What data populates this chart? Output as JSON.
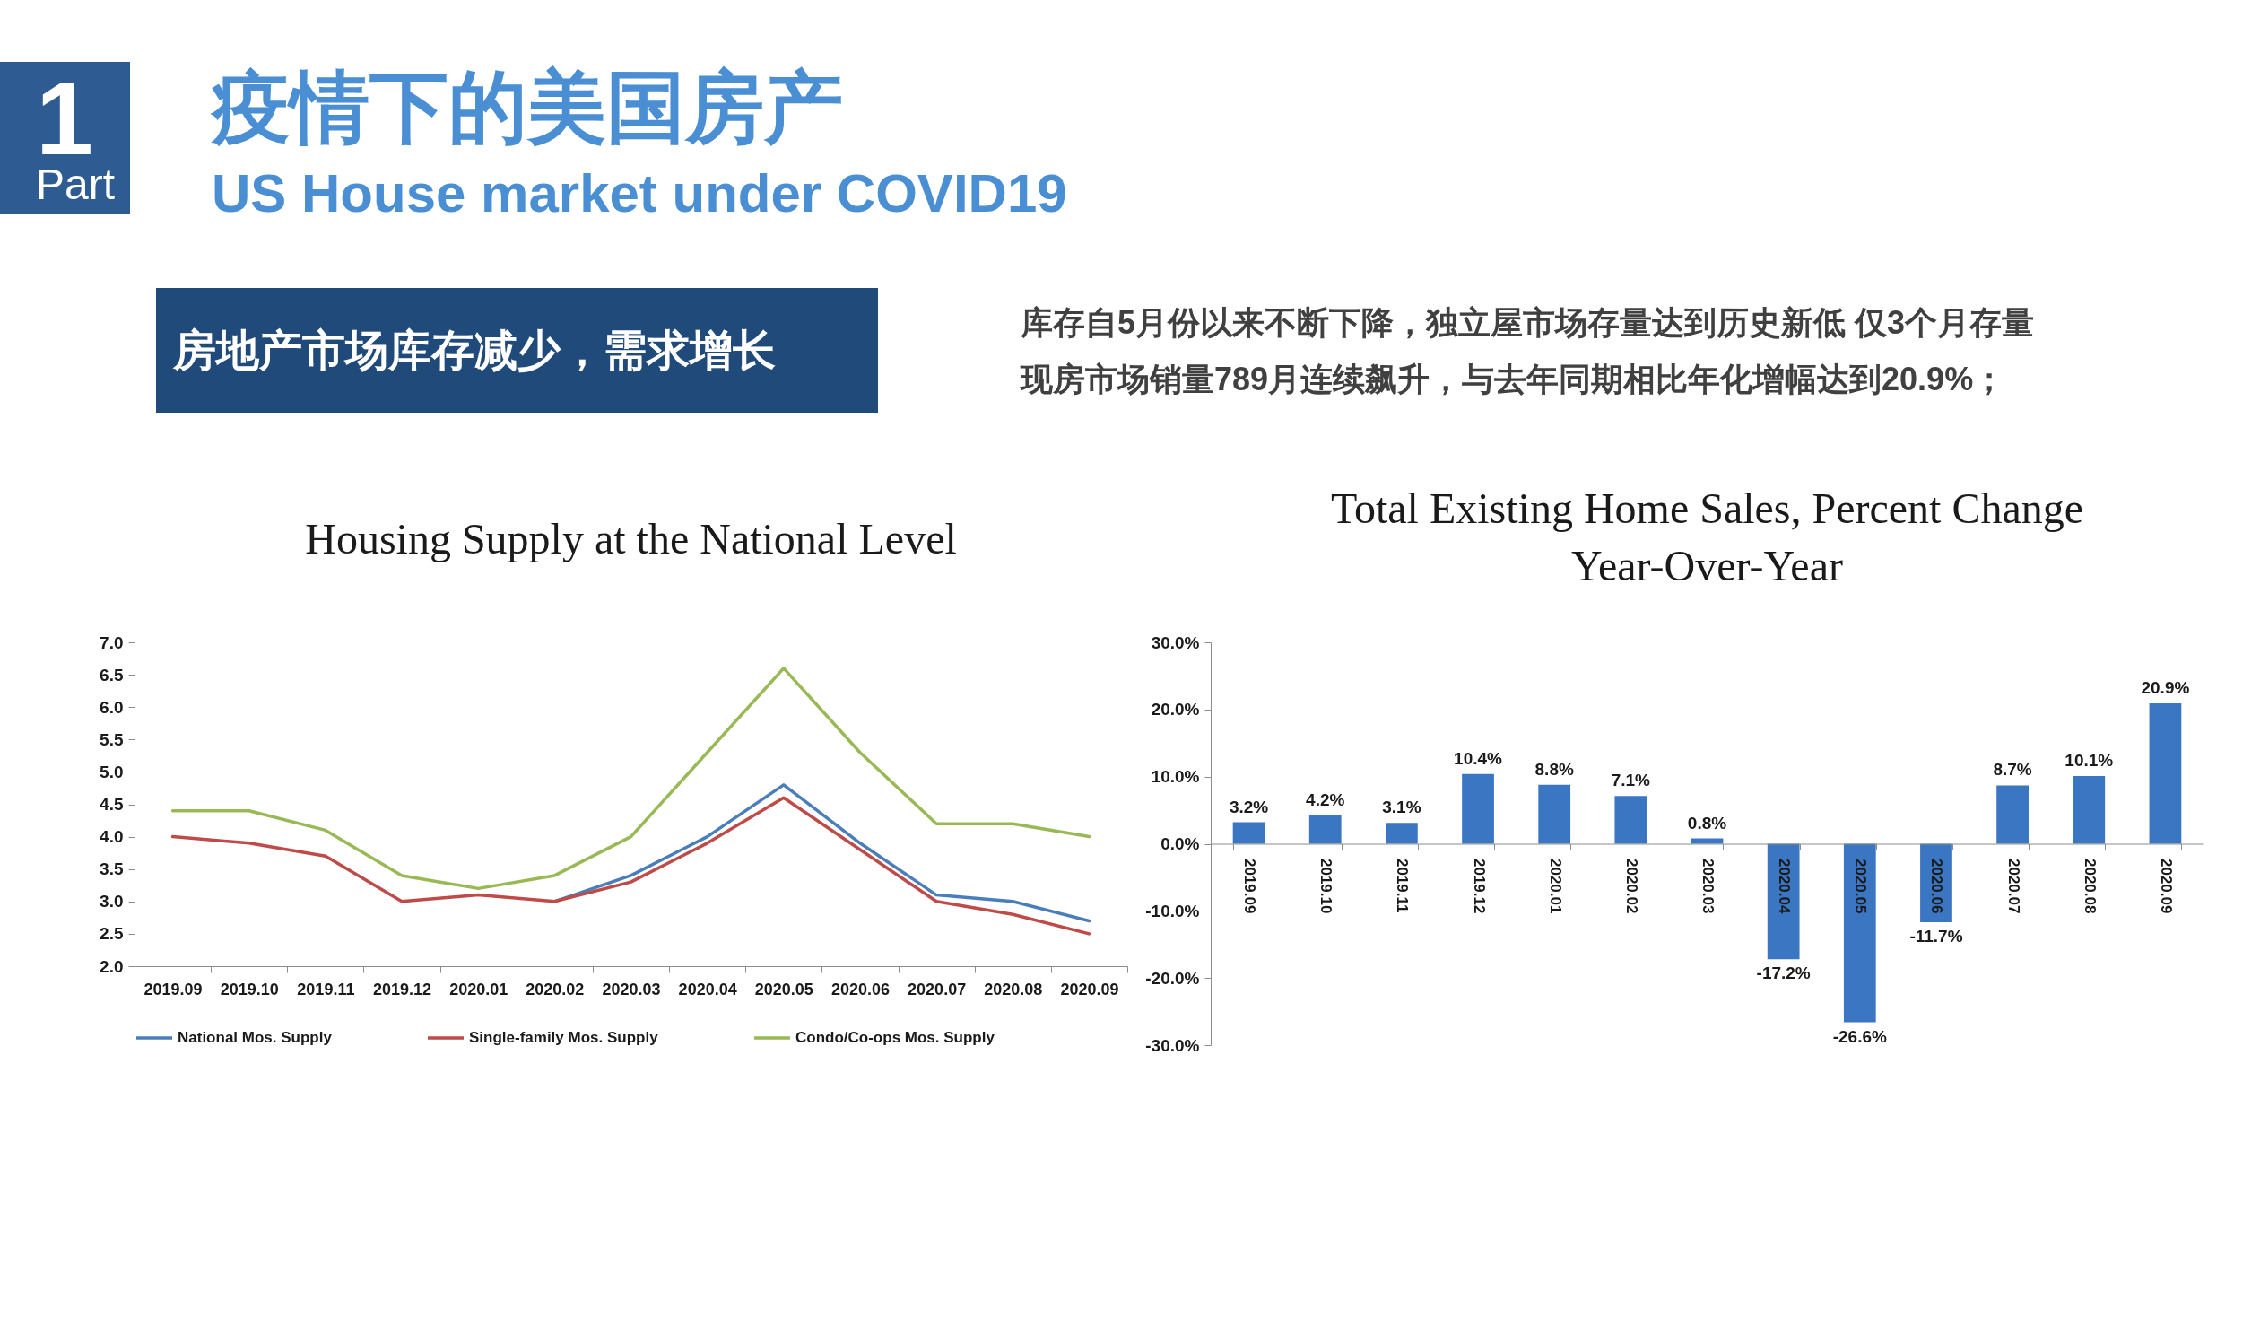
{
  "chart_data": [
    {
      "type": "other",
      "title": "疫情下的美国房产",
      "subtitle": "US House market under COVID19",
      "annotations": [
        "1",
        "Part",
        "房地产市场库存减少，需求增长",
        "库存自5月份以来不断下降，独立屋市场存量达到历史新低 仅3个月存量",
        "现房市场销量789月连续飙升，与去年同期相比年化增幅达到20.9%；"
      ]
    },
    {
      "type": "line",
      "title": "Housing Supply at the National Level",
      "categories": [
        "2019.09",
        "2019.10",
        "2019.11",
        "2019.12",
        "2020.01",
        "2020.02",
        "2020.03",
        "2020.04",
        "2020.05",
        "2020.06",
        "2020.07",
        "2020.08",
        "2020.09"
      ],
      "series": [
        {
          "name": "National Mos. Supply",
          "color": "#4a7ebb",
          "values": [
            null,
            null,
            null,
            null,
            null,
            3.0,
            3.4,
            4.0,
            4.8,
            3.9,
            3.1,
            3.0,
            2.7
          ]
        },
        {
          "name": "Single-family Mos. Supply",
          "color": "#be4b48",
          "values": [
            4.0,
            3.9,
            3.7,
            3.0,
            3.1,
            3.0,
            3.3,
            3.9,
            4.6,
            3.8,
            3.0,
            2.8,
            2.5
          ]
        },
        {
          "name": "Condo/Co-ops Mos. Supply",
          "color": "#98b954",
          "values": [
            4.4,
            4.4,
            4.1,
            3.4,
            3.2,
            3.4,
            4.0,
            5.3,
            6.6,
            5.3,
            4.2,
            4.2,
            4.0
          ]
        }
      ],
      "ylim": [
        2,
        7
      ],
      "yticks": [
        {
          "value": 2,
          "label": "2.0"
        },
        2.5,
        {
          "value": 3,
          "label": "3.0"
        },
        3.5,
        {
          "value": 4,
          "label": "4.0"
        },
        4.5,
        {
          "value": 5,
          "label": "5.0"
        },
        5.5,
        {
          "value": 6,
          "label": "6.0"
        },
        6.5,
        {
          "value": 7,
          "label": "7.0"
        }
      ],
      "legend": "bottom",
      "line_style": "solid",
      "marker": "none"
    },
    {
      "type": "bar",
      "title": "Total Existing Home Sales, Percent Change Year-Over-Year",
      "categories": [
        "2019.09",
        "2019.10",
        "2019.11",
        "2019.12",
        "2020.01",
        "2020.02",
        "2020.03",
        "2020.04",
        "2020.05",
        "2020.06",
        "2020.07",
        "2020.08",
        "2020.09"
      ],
      "values": [
        3.2,
        4.2,
        3.1,
        10.4,
        8.8,
        7.1,
        0.8,
        -17.2,
        -26.6,
        -11.7,
        8.7,
        10.1,
        20.9
      ],
      "color": "#3b76c2",
      "value_labels": [
        "3.2%",
        "4.2%",
        "3.1%",
        "10.4%",
        "8.8%",
        "7.1%",
        "0.8%",
        "-17.2%",
        "-26.6%",
        "-11.7%",
        "8.7%",
        "10.1%",
        "20.9%"
      ],
      "ylim": [
        -30,
        30
      ],
      "yticks": [
        {
          "value": -30,
          "label": "-30.0%"
        },
        {
          "value": -20,
          "label": "-20.0%"
        },
        {
          "value": -10,
          "label": "-10.0%"
        },
        {
          "value": 0,
          "label": "0.0%"
        },
        {
          "value": 10,
          "label": "10.0%"
        },
        {
          "value": 20,
          "label": "20.0%"
        },
        {
          "value": 30,
          "label": "30.0%"
        }
      ]
    }
  ]
}
